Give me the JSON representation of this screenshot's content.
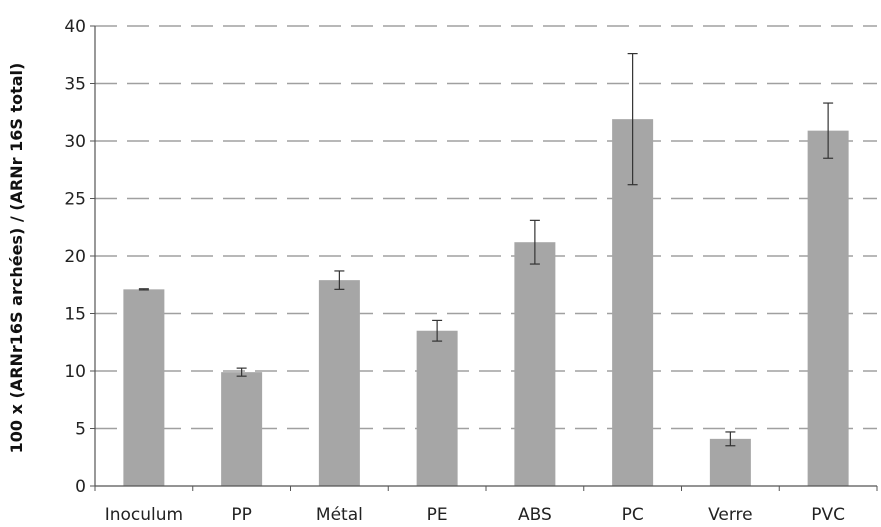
{
  "chart_data": {
    "type": "bar",
    "title": "",
    "xlabel": "",
    "ylabel": "100 x (ARNr16S archées) / (ARNr 16S total)",
    "categories": [
      "Inoculum",
      "PP",
      "Métal",
      "PE",
      "ABS",
      "PC",
      "Verre",
      "PVC"
    ],
    "values": [
      17.1,
      9.9,
      17.9,
      13.5,
      21.2,
      31.9,
      4.1,
      30.9
    ],
    "error": [
      0.05,
      0.35,
      0.8,
      0.9,
      1.9,
      5.7,
      0.6,
      2.4
    ],
    "ylim": [
      0,
      40
    ],
    "yticks": [
      0,
      5,
      10,
      15,
      20,
      25,
      30,
      35,
      40
    ],
    "grid": true,
    "grid_style": "dashed",
    "legend": "none",
    "bar_color": "#a6a6a6",
    "error_color": "#333333",
    "grid_color": "#a0a0a0",
    "axis_color": "#555555"
  }
}
